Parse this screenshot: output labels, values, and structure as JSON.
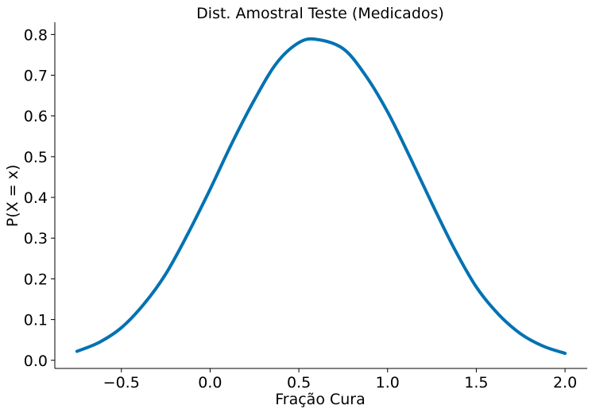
{
  "chart_data": {
    "type": "line",
    "title": "Dist. Amostral Teste (Medicados)",
    "xlabel": "Fração Cura",
    "ylabel": "P(X = x)",
    "xlim": [
      -0.875,
      2.125
    ],
    "ylim": [
      -0.02,
      0.83
    ],
    "xticks": [
      -0.5,
      0.0,
      0.5,
      1.0,
      1.5,
      2.0
    ],
    "xtick_labels": [
      "−0.5",
      "0.0",
      "0.5",
      "1.0",
      "1.5",
      "2.0"
    ],
    "yticks": [
      0.0,
      0.1,
      0.2,
      0.3,
      0.4,
      0.5,
      0.6,
      0.7,
      0.8
    ],
    "ytick_labels": [
      "0.0",
      "0.1",
      "0.2",
      "0.3",
      "0.4",
      "0.5",
      "0.6",
      "0.7",
      "0.8"
    ],
    "grid": false,
    "series": [
      {
        "color": "#0072b2",
        "x": [
          -0.75,
          -0.625,
          -0.5,
          -0.375,
          -0.25,
          -0.125,
          0.0,
          0.125,
          0.25,
          0.375,
          0.5,
          0.6,
          0.75,
          0.875,
          1.0,
          1.125,
          1.25,
          1.375,
          1.5,
          1.625,
          1.75,
          1.875,
          2.0
        ],
        "y": [
          0.022,
          0.044,
          0.08,
          0.137,
          0.212,
          0.311,
          0.42,
          0.535,
          0.64,
          0.73,
          0.78,
          0.788,
          0.765,
          0.7,
          0.61,
          0.5,
          0.385,
          0.275,
          0.18,
          0.113,
          0.065,
          0.035,
          0.017
        ]
      }
    ]
  }
}
